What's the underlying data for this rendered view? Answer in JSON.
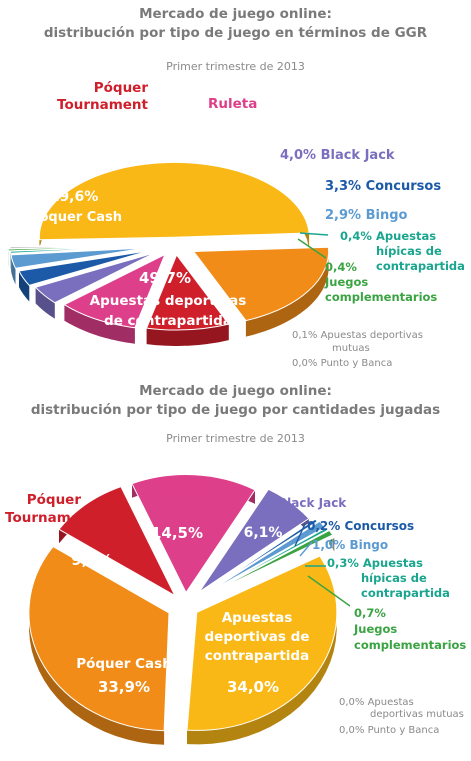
{
  "chart_data": [
    {
      "type": "pie",
      "title_line1": "Mercado de juego online:",
      "title_line2": "distribución por tipo de juego en términos de GGR",
      "subtitle": "Primer trimestre de 2013",
      "slices": [
        {
          "label": "Apuestas deportivas de contrapartida",
          "value": 49.7,
          "display": "49,7%",
          "color": "#f9b816"
        },
        {
          "label": "Póquer Cash",
          "value": 19.6,
          "display": "19,6%",
          "color": "#f08c17"
        },
        {
          "label": "Póquer Tournament",
          "value": 9.9,
          "display": "9,9%",
          "color": "#cf1f2b"
        },
        {
          "label": "Ruleta",
          "value": 9.8,
          "display": "9,8%",
          "color": "#de3f8a"
        },
        {
          "label": "Black Jack",
          "value": 4.0,
          "display": "4,0%",
          "color": "#7a6fbf"
        },
        {
          "label": "Concursos",
          "value": 3.3,
          "display": "3,3%",
          "color": "#1c5aa8"
        },
        {
          "label": "Bingo",
          "value": 2.9,
          "display": "2,9%",
          "color": "#5c9bd2"
        },
        {
          "label": "Apuestas hípicas de contrapartida",
          "value": 0.4,
          "display": "0,4%",
          "color": "#1aa58e"
        },
        {
          "label": "Juegos complementarios",
          "value": 0.4,
          "display": "0,4%",
          "color": "#3aa342"
        },
        {
          "label": "Apuestas deportivas mutuas",
          "value": 0.1,
          "display": "0,1%",
          "color": "#9a9a9a"
        },
        {
          "label": "Punto y Banca",
          "value": 0.0,
          "display": "0,0%",
          "color": "#9a9a9a"
        }
      ],
      "labels": {
        "poker_tournament": [
          "Póquer",
          "Tournament"
        ],
        "ruleta": "Ruleta",
        "black_jack": "4,0% Black Jack",
        "concursos": "3,3% Concursos",
        "bingo": "2,9% Bingo",
        "hipicas_value": "0,4%",
        "hipicas": [
          "Apuestas",
          "hípicas de",
          "contrapartida"
        ],
        "complementarios_value": "0,4%",
        "complementarios": [
          "Juegos",
          "complementarios"
        ],
        "mutuas": [
          "0,1%  Apuestas deportivas",
          "mutuas"
        ],
        "punto_banca": "0,0%  Punto y Banca",
        "poker_cash_value": "19,6%",
        "poker_cash": "Póquer Cash",
        "deportivas_value": "49,7%",
        "deportivas": [
          "Apuestas deportivas",
          "de contrapartida"
        ]
      }
    },
    {
      "type": "pie",
      "title_line1": "Mercado de juego online:",
      "title_line2": "distribución por tipo de juego por cantidades jugadas",
      "subtitle": "Primer trimestre de 2013",
      "slices": [
        {
          "label": "Apuestas deportivas de contrapartida",
          "value": 34.0,
          "display": "34,0%",
          "color": "#f9b816"
        },
        {
          "label": "Póquer Cash",
          "value": 33.9,
          "display": "33,9%",
          "color": "#f08c17"
        },
        {
          "label": "Póquer Tournament",
          "value": 9.2,
          "display": "9,2%",
          "color": "#cf1f2b"
        },
        {
          "label": "Ruleta",
          "value": 14.5,
          "display": "14,5%",
          "color": "#de3f8a"
        },
        {
          "label": "Black Jack",
          "value": 6.1,
          "display": "6,1%",
          "color": "#7a6fbf"
        },
        {
          "label": "Concursos",
          "value": 0.2,
          "display": "0,2%",
          "color": "#1c5aa8"
        },
        {
          "label": "Bingo",
          "value": 1.0,
          "display": "1,0%",
          "color": "#5c9bd2"
        },
        {
          "label": "Apuestas hípicas de contrapartida",
          "value": 0.3,
          "display": "0,3%",
          "color": "#1aa58e"
        },
        {
          "label": "Juegos complementarios",
          "value": 0.7,
          "display": "0,7%",
          "color": "#3aa342"
        },
        {
          "label": "Apuestas deportivas mutuas",
          "value": 0.0,
          "display": "0,0%",
          "color": "#9a9a9a"
        },
        {
          "label": "Punto y Banca",
          "value": 0.0,
          "display": "0,0%",
          "color": "#9a9a9a"
        }
      ],
      "labels": {
        "ruleta": "Ruleta",
        "ruleta_value": "14,5%",
        "poker_tournament": [
          "Póquer",
          "Tournament"
        ],
        "poker_tournament_value": "9,2%",
        "black_jack": "Black Jack",
        "black_jack_value": "6,1%",
        "concursos": "0,2% Concursos",
        "bingo": "1,0% Bingo",
        "hipicas": [
          "0,3% Apuestas",
          "hípicas de",
          "contrapartida"
        ],
        "complementarios_value": "0,7%",
        "complementarios": [
          "Juegos",
          "complementarios"
        ],
        "deportivas": [
          "Apuestas",
          "deportivas de",
          "contrapartida"
        ],
        "deportivas_value": "34,0%",
        "poker_cash": "Póquer Cash",
        "poker_cash_value": "33,9%",
        "mutuas": [
          "0,0%  Apuestas",
          "deportivas mutuas"
        ],
        "punto_banca": "0,0%  Punto y Banca"
      }
    }
  ]
}
